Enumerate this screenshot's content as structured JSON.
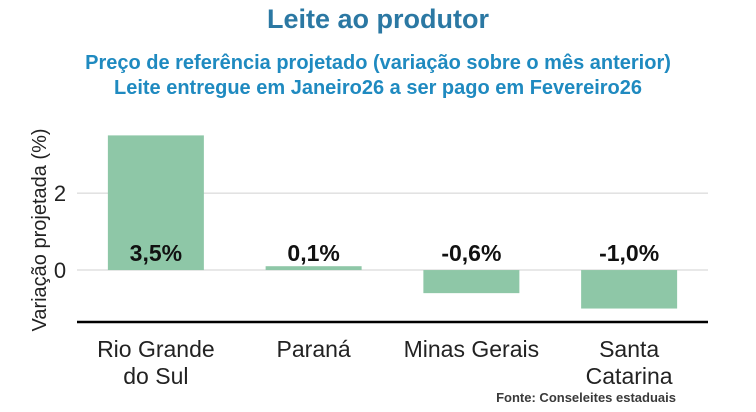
{
  "title": "Leite ao produtor",
  "subtitle_line1": "Preço de referência projetado (variação sobre o mês anterior)",
  "subtitle_line2": "Leite entregue em Janeiro26 a ser pago em Fevereiro26",
  "source": "Fonte: Conseleites estaduais",
  "colors": {
    "bar": "#8ec7a7",
    "title": "#2b78a3",
    "subtitle": "#1f8ac0",
    "grid": "#d0d0d0",
    "axis": "#000000"
  },
  "chart_data": {
    "type": "bar",
    "categories": [
      [
        "Rio Grande",
        "do Sul"
      ],
      [
        "Paraná"
      ],
      [
        "Minas Gerais"
      ],
      [
        "Santa",
        "Catarina"
      ]
    ],
    "values": [
      3.5,
      0.1,
      -0.6,
      -1.0
    ],
    "data_labels": [
      "3,5%",
      "0,1%",
      "-0,6%",
      "-1,0%"
    ],
    "ylabel": "Variação projetada (%)",
    "yticks": [
      0,
      2
    ],
    "ylim": [
      -1.35,
      3.9
    ],
    "grid": true
  }
}
